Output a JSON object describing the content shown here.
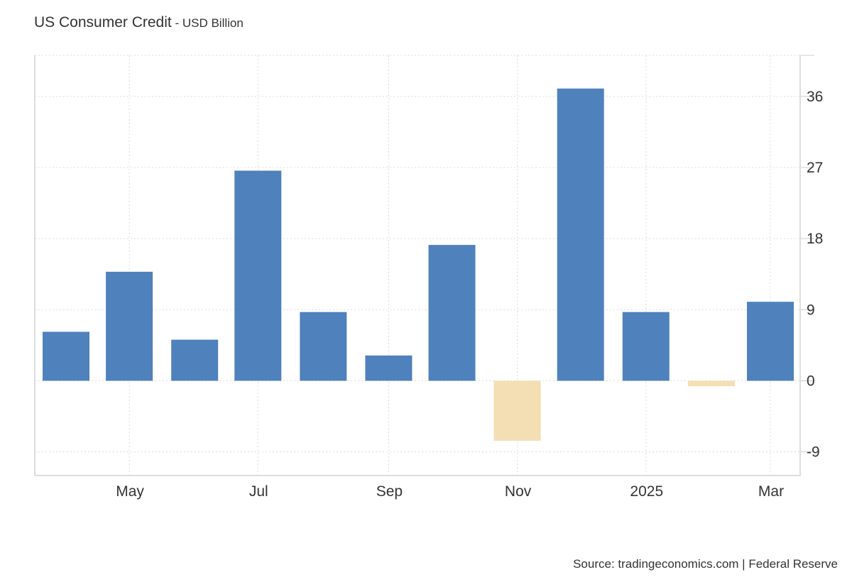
{
  "chart_data": {
    "type": "bar",
    "title": "US Consumer Credit",
    "subtitle": "USD Billion",
    "categories": [
      "2024-04",
      "2024-05",
      "2024-06",
      "2024-07",
      "2024-08",
      "2024-09",
      "2024-10",
      "2024-11",
      "2024-12",
      "2025-01",
      "2025-02",
      "2025-03"
    ],
    "values": [
      6.2,
      13.8,
      5.2,
      26.6,
      8.7,
      3.2,
      17.2,
      -7.6,
      37.0,
      8.7,
      -0.7,
      10.0
    ],
    "x_ticks": [
      {
        "date": "2024-05",
        "label": "May"
      },
      {
        "date": "2024-07",
        "label": "Jul"
      },
      {
        "date": "2024-09",
        "label": "Sep"
      },
      {
        "date": "2024-11",
        "label": "Nov"
      },
      {
        "date": "2025-01",
        "label": "2025"
      },
      {
        "date": "2025-03",
        "label": "Mar"
      }
    ],
    "y_ticks": [
      -9,
      0,
      9,
      18,
      27,
      36
    ],
    "ylim": [
      -12,
      41.2
    ],
    "y_axis_side": "right",
    "grid": true,
    "colors": {
      "positive": "#4f81bd",
      "negative": "#f4deb4",
      "grid": "#dcdcdc"
    }
  },
  "source": "Source: tradingeconomics.com | Federal Reserve"
}
